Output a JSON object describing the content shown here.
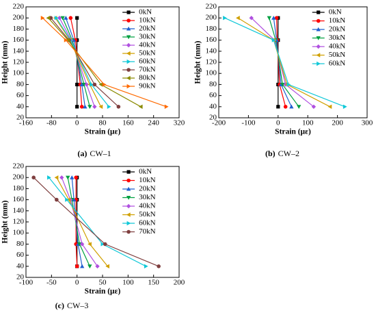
{
  "chart_data": [
    {
      "type": "line",
      "caption_label": "(a)",
      "caption": "CW–1",
      "x_label": "Strain (με)",
      "y_label": "Height (mm)",
      "xlim": [
        -160,
        320
      ],
      "xticks": [
        -160,
        -80,
        0,
        80,
        160,
        240,
        320
      ],
      "ylim": [
        20,
        220
      ],
      "yticks": [
        20,
        40,
        60,
        80,
        100,
        120,
        140,
        160,
        180,
        200,
        220
      ],
      "legend": "upper right",
      "series": [
        {
          "name": "0kN",
          "color": "#000000",
          "marker": "square",
          "x": [
            0,
            0,
            0,
            0
          ],
          "values": [
            200,
            160,
            80,
            40
          ]
        },
        {
          "name": "10kN",
          "color": "#ff0000",
          "marker": "circle",
          "x": [
            -20,
            -5,
            10,
            15
          ],
          "values": [
            200,
            160,
            80,
            40
          ]
        },
        {
          "name": "20kN",
          "color": "#1f5fcf",
          "marker": "up",
          "x": [
            -35,
            -10,
            15,
            25
          ],
          "values": [
            200,
            160,
            80,
            40
          ]
        },
        {
          "name": "30kN",
          "color": "#00a040",
          "marker": "down",
          "x": [
            -45,
            -15,
            22,
            40
          ],
          "values": [
            200,
            160,
            80,
            40
          ]
        },
        {
          "name": "40kN",
          "color": "#b050e0",
          "marker": "diamond",
          "x": [
            -55,
            -18,
            30,
            55
          ],
          "values": [
            200,
            160,
            80,
            40
          ]
        },
        {
          "name": "50kN",
          "color": "#d0a000",
          "marker": "left",
          "x": [
            -68,
            -22,
            40,
            75
          ],
          "values": [
            200,
            160,
            80,
            40
          ]
        },
        {
          "name": "60kN",
          "color": "#10c8d8",
          "marker": "right",
          "x": [
            -65,
            -20,
            45,
            100
          ],
          "values": [
            200,
            160,
            80,
            40
          ]
        },
        {
          "name": "70kN",
          "color": "#7f3f3f",
          "marker": "circle",
          "x": [
            -82,
            -25,
            55,
            130
          ],
          "values": [
            200,
            160,
            80,
            40
          ]
        },
        {
          "name": "80kN",
          "color": "#8a8a00",
          "marker": "left",
          "x": [
            -90,
            -28,
            75,
            200
          ],
          "values": [
            200,
            160,
            80,
            40
          ]
        },
        {
          "name": "90kN",
          "color": "#ff6a00",
          "marker": "right",
          "x": [
            -108,
            -35,
            85,
            280
          ],
          "values": [
            200,
            160,
            80,
            40
          ]
        }
      ]
    },
    {
      "type": "line",
      "caption_label": "(b)",
      "caption": "CW–2",
      "x_label": "Strain (με)",
      "y_label": "Height (mm)",
      "xlim": [
        -200,
        300
      ],
      "xticks": [
        -200,
        -100,
        0,
        100,
        200,
        300
      ],
      "ylim": [
        20,
        220
      ],
      "yticks": [
        20,
        40,
        60,
        80,
        100,
        120,
        140,
        160,
        180,
        200,
        220
      ],
      "legend": "upper right",
      "series": [
        {
          "name": "0kN",
          "color": "#000000",
          "marker": "square",
          "x": [
            0,
            0,
            0,
            0
          ],
          "values": [
            200,
            160,
            80,
            40
          ]
        },
        {
          "name": "10kN",
          "color": "#ff0000",
          "marker": "circle",
          "x": [
            -5,
            -3,
            5,
            25
          ],
          "values": [
            200,
            160,
            80,
            40
          ]
        },
        {
          "name": "20kN",
          "color": "#1f5fcf",
          "marker": "up",
          "x": [
            -15,
            -5,
            10,
            45
          ],
          "values": [
            200,
            160,
            80,
            40
          ]
        },
        {
          "name": "30kN",
          "color": "#00a040",
          "marker": "down",
          "x": [
            -30,
            -8,
            15,
            70
          ],
          "values": [
            200,
            160,
            80,
            40
          ]
        },
        {
          "name": "40kN",
          "color": "#b050e0",
          "marker": "diamond",
          "x": [
            -90,
            -12,
            25,
            120
          ],
          "values": [
            200,
            160,
            80,
            40
          ]
        },
        {
          "name": "50kN",
          "color": "#d0a000",
          "marker": "left",
          "x": [
            -135,
            -15,
            30,
            175
          ],
          "values": [
            200,
            160,
            80,
            40
          ]
        },
        {
          "name": "60kN",
          "color": "#10c8d8",
          "marker": "right",
          "x": [
            -180,
            -15,
            35,
            225
          ],
          "values": [
            200,
            160,
            80,
            40
          ]
        }
      ]
    },
    {
      "type": "line",
      "caption_label": "(c)",
      "caption": "CW–3",
      "x_label": "Strain (με)",
      "y_label": "Height (mm)",
      "xlim": [
        -100,
        200
      ],
      "xticks": [
        -100,
        -50,
        0,
        50,
        100,
        150,
        200
      ],
      "ylim": [
        20,
        220
      ],
      "yticks": [
        20,
        40,
        60,
        80,
        100,
        120,
        140,
        160,
        180,
        200,
        220
      ],
      "legend": "upper right",
      "series": [
        {
          "name": "0kN",
          "color": "#000000",
          "marker": "square",
          "x": [
            0,
            0,
            0,
            0
          ],
          "values": [
            200,
            160,
            80,
            40
          ]
        },
        {
          "name": "10kN",
          "color": "#ff0000",
          "marker": "circle",
          "x": [
            -2,
            -2,
            -2,
            0
          ],
          "values": [
            200,
            160,
            80,
            40
          ]
        },
        {
          "name": "20kN",
          "color": "#1f5fcf",
          "marker": "up",
          "x": [
            -10,
            -6,
            2,
            10
          ],
          "values": [
            200,
            160,
            80,
            40
          ]
        },
        {
          "name": "30kN",
          "color": "#00a040",
          "marker": "down",
          "x": [
            -18,
            -10,
            5,
            25
          ],
          "values": [
            200,
            160,
            80,
            40
          ]
        },
        {
          "name": "40kN",
          "color": "#b050e0",
          "marker": "diamond",
          "x": [
            -30,
            -13,
            10,
            40
          ],
          "values": [
            200,
            160,
            80,
            40
          ]
        },
        {
          "name": "50kN",
          "color": "#d0a000",
          "marker": "left",
          "x": [
            -40,
            -16,
            25,
            60
          ],
          "values": [
            200,
            160,
            80,
            40
          ]
        },
        {
          "name": "60kN",
          "color": "#10c8d8",
          "marker": "right",
          "x": [
            -55,
            -20,
            50,
            135
          ],
          "values": [
            200,
            160,
            80,
            40
          ]
        },
        {
          "name": "70kN",
          "color": "#7f3f3f",
          "marker": "circle",
          "x": [
            -85,
            -40,
            55,
            160
          ],
          "values": [
            200,
            160,
            80,
            40
          ]
        }
      ]
    }
  ]
}
